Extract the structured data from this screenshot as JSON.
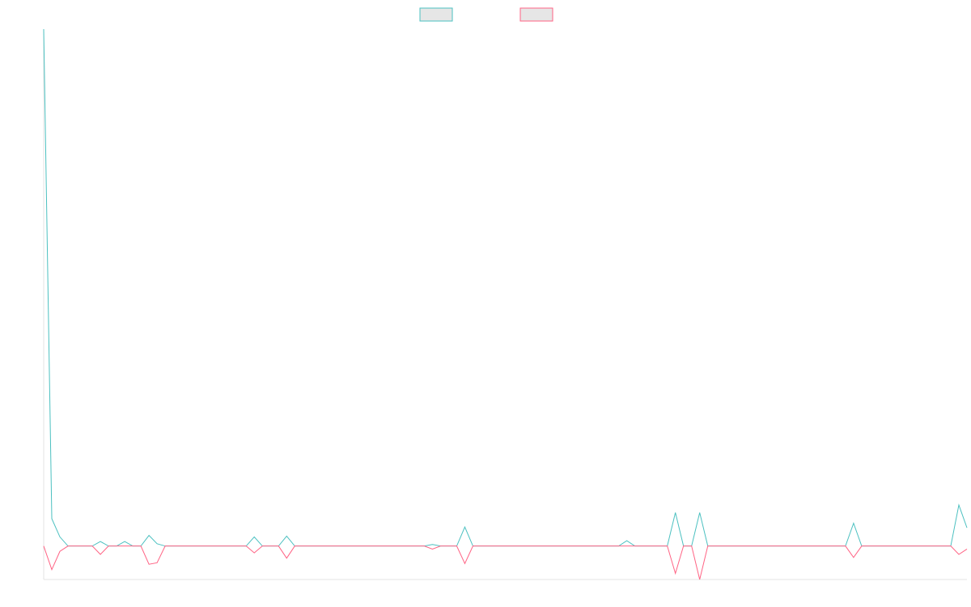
{
  "chart_data": {
    "type": "line",
    "title": "",
    "xlabel": "",
    "ylabel": "",
    "grid": false,
    "legend_position": "top-center",
    "ylim": [
      -4.4,
      68
    ],
    "x": [
      0,
      1,
      2,
      3,
      4,
      5,
      6,
      7,
      8,
      9,
      10,
      11,
      12,
      13,
      14,
      15,
      16,
      17,
      18,
      19,
      20,
      21,
      22,
      23,
      24,
      25,
      26,
      27,
      28,
      29,
      30,
      31,
      32,
      33,
      34,
      35,
      36,
      37,
      38,
      39,
      40,
      41,
      42,
      43,
      44,
      45,
      46,
      47,
      48,
      49,
      50,
      51,
      52,
      53,
      54,
      55,
      56,
      57,
      58,
      59,
      60,
      61,
      62,
      63,
      64,
      65,
      66,
      67,
      68,
      69,
      70,
      71,
      72,
      73,
      74,
      75,
      76,
      77,
      78,
      79,
      80,
      81,
      82,
      83,
      84,
      85,
      86,
      87,
      88,
      89,
      90,
      91,
      92,
      93,
      94,
      95,
      96,
      97,
      98,
      99,
      100,
      101,
      102,
      103,
      104,
      105,
      106,
      107,
      108,
      109,
      110,
      111,
      112,
      113,
      114
    ],
    "series": [
      {
        "color": "#4bc0c0",
        "fill": "#e6e6e6",
        "values": [
          68,
          3.6,
          1.2,
          0,
          0,
          0,
          0,
          0.6,
          0,
          0,
          0.6,
          0,
          0,
          1.4,
          0.3,
          0,
          0,
          0,
          0,
          0,
          0,
          0,
          0,
          0,
          0,
          0,
          1.2,
          0,
          0,
          0,
          1.3,
          0,
          0,
          0,
          0,
          0,
          0,
          0,
          0,
          0,
          0,
          0,
          0,
          0,
          0,
          0,
          0,
          0,
          0.2,
          0,
          0,
          0,
          2.5,
          0,
          0,
          0,
          0,
          0,
          0,
          0,
          0,
          0,
          0,
          0,
          0,
          0,
          0,
          0,
          0,
          0,
          0,
          0,
          0.7,
          0,
          0,
          0,
          0,
          0,
          4.4,
          0,
          0,
          4.4,
          0,
          0,
          0,
          0,
          0,
          0,
          0,
          0,
          0,
          0,
          0,
          0,
          0,
          0,
          0,
          0,
          0,
          0,
          3,
          0,
          0,
          0,
          0,
          0,
          0,
          0,
          0,
          0,
          0,
          0,
          0,
          5.4,
          2.4
        ]
      },
      {
        "color": "#ff6384",
        "fill": "#e6e6e6",
        "values": [
          0,
          -3.1,
          -0.7,
          0,
          0,
          0,
          0,
          -1.1,
          0,
          0,
          0,
          0,
          0,
          -2.4,
          -2.2,
          0,
          0,
          0,
          0,
          0,
          0,
          0,
          0,
          0,
          0,
          0,
          -0.9,
          0,
          0,
          0,
          -1.6,
          0,
          0,
          0,
          0,
          0,
          0,
          0,
          0,
          0,
          0,
          0,
          0,
          0,
          0,
          0,
          0,
          0,
          -0.4,
          0,
          0,
          0,
          -2.3,
          0,
          0,
          0,
          0,
          0,
          0,
          0,
          0,
          0,
          0,
          0,
          0,
          0,
          0,
          0,
          0,
          0,
          0,
          0,
          0,
          0,
          0,
          0,
          0,
          0,
          -3.6,
          0,
          0,
          -4.4,
          0,
          0,
          0,
          0,
          0,
          0,
          0,
          0,
          0,
          0,
          0,
          0,
          0,
          0,
          0,
          0,
          0,
          0,
          -1.5,
          0,
          0,
          0,
          0,
          0,
          0,
          0,
          0,
          0,
          0,
          0,
          0,
          -1.1,
          -0.4
        ]
      }
    ]
  }
}
